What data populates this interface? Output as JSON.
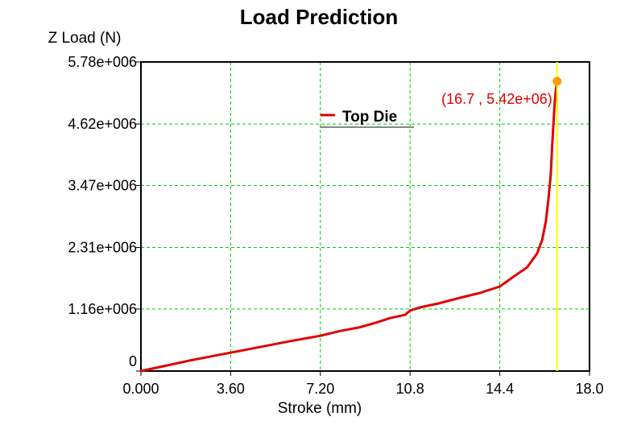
{
  "chart_data": {
    "type": "line",
    "title": "Load Prediction",
    "xlabel": "Stroke (mm)",
    "ylabel": "Z Load (N)",
    "xlim": [
      0,
      18
    ],
    "ylim": [
      0,
      5780000
    ],
    "x_ticks": [
      "0.000",
      "3.60",
      "7.20",
      "10.8",
      "14.4",
      "18.0"
    ],
    "x_tick_values": [
      0,
      3.6,
      7.2,
      10.8,
      14.4,
      18.0
    ],
    "y_ticks": [
      "0",
      "1.16e+006",
      "2.31e+006",
      "3.47e+006",
      "4.62e+006",
      "5.78e+006"
    ],
    "y_tick_values": [
      0,
      1160000,
      2310000,
      3470000,
      4620000,
      5780000
    ],
    "grid": true,
    "grid_color": "#00cc00",
    "legend_position": "top-center",
    "series": [
      {
        "name": "Top Die",
        "color": "#e00000",
        "x": [
          0,
          1.0,
          2.0,
          3.0,
          4.0,
          5.0,
          6.0,
          7.2,
          8.0,
          8.8,
          9.4,
          10.0,
          10.6,
          10.8,
          11.2,
          12.0,
          12.8,
          13.6,
          14.4,
          15.0,
          15.5,
          15.9,
          16.1,
          16.25,
          16.35,
          16.45,
          16.5,
          16.55,
          16.6,
          16.65,
          16.7
        ],
        "y": [
          0,
          100000,
          200000,
          290000,
          380000,
          470000,
          560000,
          660000,
          750000,
          820000,
          900000,
          990000,
          1050000,
          1130000,
          1190000,
          1270000,
          1370000,
          1460000,
          1580000,
          1780000,
          1940000,
          2200000,
          2450000,
          2800000,
          3200000,
          3700000,
          4200000,
          4600000,
          5000000,
          5250000,
          5420000
        ]
      }
    ],
    "cursor": {
      "x": 16.7,
      "y": 5420000,
      "label": "(16.7 , 5.42e+06)",
      "line_color": "#ffff00",
      "marker_color": "#ff9900"
    }
  }
}
